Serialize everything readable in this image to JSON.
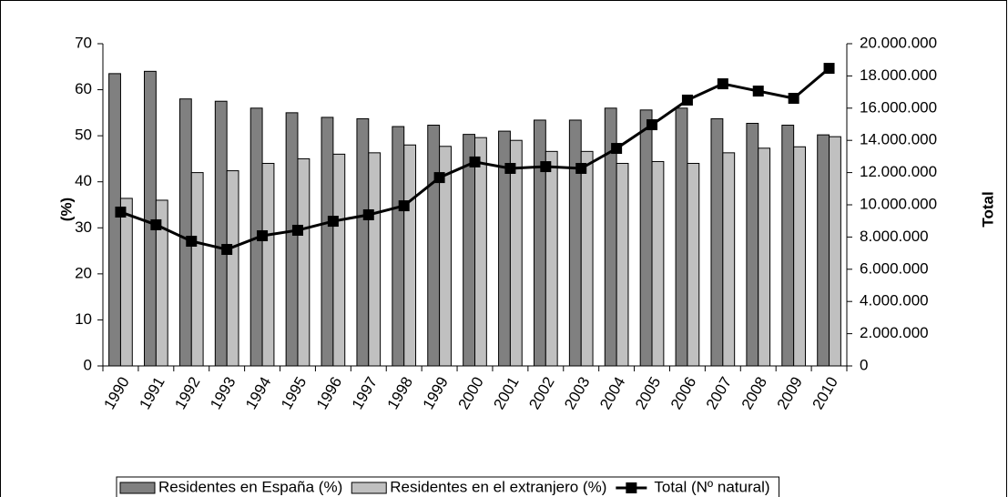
{
  "chart_data": {
    "type": "combo",
    "categories": [
      "1990",
      "1991",
      "1992",
      "1993",
      "1994",
      "1995",
      "1996",
      "1997",
      "1998",
      "1999",
      "2000",
      "2001",
      "2002",
      "2003",
      "2004",
      "2005",
      "2006",
      "2007",
      "2008",
      "2009",
      "2010"
    ],
    "series": [
      {
        "name": "Residentes en España (%)",
        "type": "bar",
        "color": "#808080",
        "values": [
          63.5,
          64,
          58,
          57.5,
          56,
          55,
          54,
          53.7,
          52,
          52.3,
          50.3,
          51,
          53.4,
          53.4,
          56,
          55.6,
          56,
          53.7,
          52.7,
          52.3,
          50.2
        ]
      },
      {
        "name": "Residentes en el extranjero (%)",
        "type": "bar",
        "color": "#c0c0c0",
        "values": [
          36.4,
          36,
          42,
          42.4,
          44,
          45,
          46,
          46.3,
          48,
          47.7,
          49.6,
          49,
          46.6,
          46.6,
          44,
          44.4,
          44,
          46.3,
          47.3,
          47.6,
          49.8
        ]
      },
      {
        "name": "Total (Nº natural)",
        "type": "line",
        "color": "#000000",
        "axis": "y2",
        "values": [
          9550000,
          8760000,
          7740000,
          7230000,
          8080000,
          8420000,
          8980000,
          9380000,
          9940000,
          11690000,
          12660000,
          12260000,
          12370000,
          12260000,
          13500000,
          14970000,
          16500000,
          17510000,
          17060000,
          16610000,
          18470000
        ]
      }
    ],
    "y_label": "(%)",
    "y2_label": "Total",
    "ylim": [
      0,
      70
    ],
    "yticks": [
      0,
      10,
      20,
      30,
      40,
      50,
      60,
      70
    ],
    "y2lim": [
      0,
      20000000
    ],
    "y2ticks": [
      0,
      {
        "value": 2000000,
        "label": "2.000.000"
      },
      {
        "value": 4000000,
        "label": "4.000.000"
      },
      {
        "value": 6000000,
        "label": "6.000.000"
      },
      {
        "value": 8000000,
        "label": "8.000.000"
      },
      {
        "value": 10000000,
        "label": "10.000.000"
      },
      {
        "value": 12000000,
        "label": "12.000.000"
      },
      {
        "value": 14000000,
        "label": "14.000.000"
      },
      {
        "value": 16000000,
        "label": "16.000.000"
      },
      {
        "value": 18000000,
        "label": "18.000.000"
      },
      {
        "value": 20000000,
        "label": "20.000.000"
      }
    ],
    "legend": "bottom",
    "grid": false
  }
}
